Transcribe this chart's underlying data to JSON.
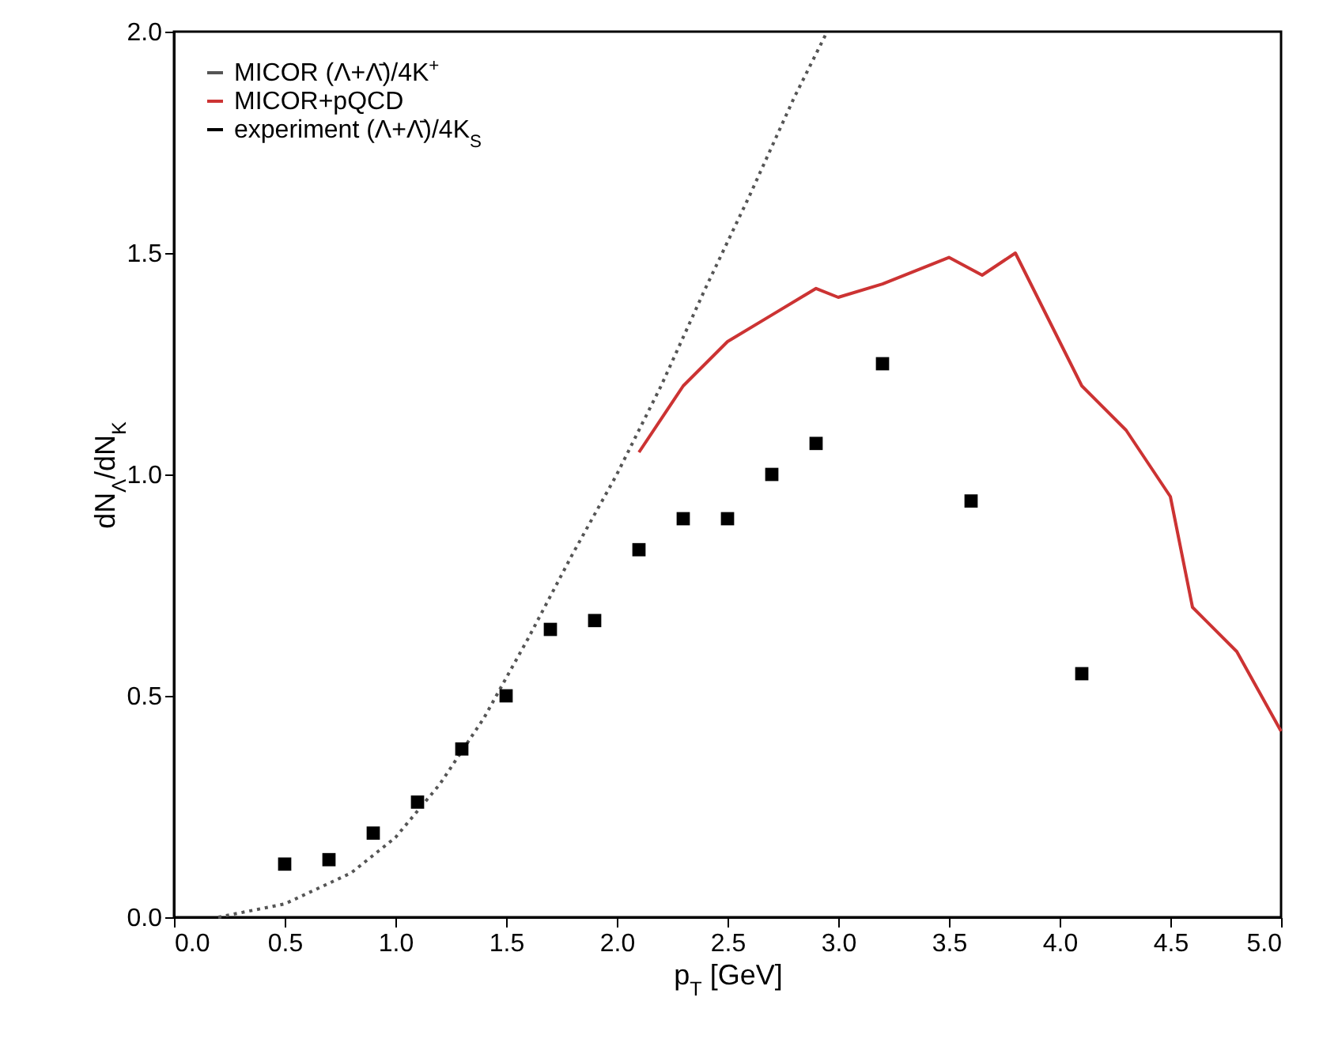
{
  "chart_data": {
    "type": "line",
    "xlabel": "p$_{T}$ [GeV]",
    "ylabel": "dN$_{Λ}$/dN$_{K}$",
    "xlim": [
      0,
      5
    ],
    "ylim": [
      0,
      2
    ],
    "xticks": [
      {
        "value": 0,
        "label": "0.0"
      },
      0.5,
      {
        "value": 1,
        "label": "1.0"
      },
      1.5,
      {
        "value": 2,
        "label": "2.0"
      },
      2.5,
      {
        "value": 3,
        "label": "3.0"
      },
      3.5,
      {
        "value": 4,
        "label": "4.0"
      },
      4.5,
      {
        "value": 5,
        "label": "5.0"
      }
    ],
    "yticks": [
      {
        "value": 0,
        "label": "0.0"
      },
      0.5,
      {
        "value": 1,
        "label": "1.0"
      },
      1.5,
      {
        "value": 2,
        "label": "2.0"
      }
    ],
    "legend": "top left",
    "grid": false,
    "series": [
      {
        "name": "MICOR (Λ+Λ̄)/4K$^{+}$",
        "type": "line",
        "line_style": "dotted",
        "color": "#555555",
        "x": [
          0.2,
          0.5,
          0.8,
          1.0,
          1.2,
          1.4,
          1.6,
          1.8,
          2.0,
          2.2,
          2.4,
          2.6,
          2.8,
          2.95
        ],
        "values": [
          0.0,
          0.03,
          0.1,
          0.18,
          0.3,
          0.45,
          0.63,
          0.82,
          1.0,
          1.2,
          1.42,
          1.63,
          1.85,
          2.0
        ]
      },
      {
        "name": "MICOR+pQCD",
        "type": "line",
        "line_style": "solid",
        "color": "#cc3333",
        "x": [
          2.1,
          2.3,
          2.5,
          2.7,
          2.9,
          3.0,
          3.2,
          3.5,
          3.65,
          3.8,
          4.0,
          4.1,
          4.3,
          4.5,
          4.6,
          4.8,
          5.0
        ],
        "values": [
          1.05,
          1.2,
          1.3,
          1.36,
          1.42,
          1.4,
          1.43,
          1.49,
          1.45,
          1.5,
          1.3,
          1.2,
          1.1,
          0.95,
          0.7,
          0.6,
          0.42
        ]
      },
      {
        "name": "experiment (Λ+Λ̄)/4K$_{S}$",
        "type": "scatter",
        "marker": "square",
        "color": "#000000",
        "x": [
          0.5,
          0.7,
          0.9,
          1.1,
          1.3,
          1.5,
          1.7,
          1.9,
          2.1,
          2.3,
          2.5,
          2.7,
          2.9,
          3.2,
          3.6,
          4.1
        ],
        "values": [
          0.12,
          0.13,
          0.19,
          0.26,
          0.38,
          0.5,
          0.65,
          0.67,
          0.83,
          0.9,
          0.9,
          1.0,
          1.07,
          1.25,
          0.94,
          0.55
        ]
      }
    ]
  }
}
